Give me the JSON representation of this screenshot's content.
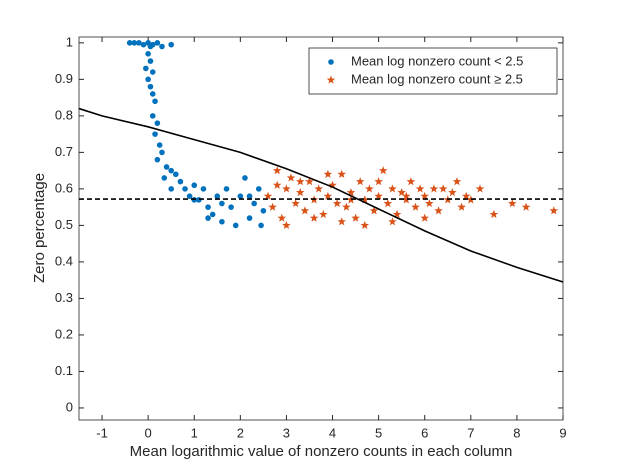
{
  "chart_data": {
    "type": "scatter",
    "xlabel": "Mean logarithmic value of nonzero counts in each column",
    "ylabel": "Zero percentage",
    "xlim": [
      -1.5,
      9
    ],
    "ylim": [
      -0.033,
      1.016
    ],
    "xticks": [
      -1,
      0,
      1,
      2,
      3,
      4,
      5,
      6,
      7,
      8,
      9
    ],
    "yticks": [
      0,
      0.1,
      0.2,
      0.3,
      0.4,
      0.5,
      0.6,
      0.7,
      0.8,
      0.9,
      1
    ],
    "legend": "upper right",
    "series": [
      {
        "name": "Mean log nonzero count < 2.5",
        "color": "#0072BD",
        "marker": "dot",
        "x": [
          -0.4,
          -0.3,
          -0.2,
          -0.1,
          0,
          0.05,
          0.1,
          0.2,
          0.3,
          0.5,
          0,
          0.05,
          -0.05,
          0.1,
          0,
          0.05,
          0.1,
          0.15,
          0.1,
          0.2,
          0.15,
          0.25,
          0.3,
          0.2,
          0.4,
          0.5,
          0.35,
          0.6,
          0.7,
          0.5,
          0.8,
          1.0,
          1.2,
          0.9,
          1.1,
          1.3,
          1.5,
          1.4,
          1.6,
          1.8,
          1.7,
          2.0,
          2.1,
          2.2,
          1.9,
          2.3,
          2.4,
          2.5,
          2.2,
          1.6,
          1.0,
          2.45,
          1.3
        ],
        "values": [
          1,
          1,
          1,
          0.995,
          1,
          0.99,
          0.995,
          1,
          0.99,
          0.995,
          0.97,
          0.95,
          0.93,
          0.92,
          0.9,
          0.88,
          0.86,
          0.84,
          0.8,
          0.78,
          0.75,
          0.72,
          0.7,
          0.68,
          0.66,
          0.65,
          0.63,
          0.64,
          0.62,
          0.6,
          0.6,
          0.61,
          0.6,
          0.58,
          0.57,
          0.55,
          0.58,
          0.53,
          0.51,
          0.55,
          0.6,
          0.58,
          0.63,
          0.52,
          0.5,
          0.56,
          0.6,
          0.54,
          0.58,
          0.56,
          0.57,
          0.5,
          0.52
        ]
      },
      {
        "name": "Mean log nonzero count ≥ 2.5",
        "color": "#D95319",
        "marker": "star",
        "x": [
          2.6,
          2.7,
          2.8,
          2.9,
          3.0,
          3.1,
          3.2,
          3.3,
          3.4,
          3.5,
          3.6,
          3.7,
          3.8,
          3.9,
          4.0,
          4.1,
          4.2,
          4.3,
          4.4,
          4.5,
          4.6,
          4.7,
          4.8,
          4.9,
          5.0,
          5.1,
          5.2,
          5.3,
          5.4,
          5.5,
          5.6,
          5.7,
          5.8,
          5.9,
          6.0,
          6.1,
          6.2,
          6.3,
          6.5,
          6.6,
          6.7,
          6.8,
          7.0,
          7.2,
          7.5,
          7.9,
          8.2,
          8.8,
          2.8,
          3.0,
          3.3,
          3.6,
          3.9,
          4.2,
          4.4,
          4.7,
          5.0,
          5.3,
          5.6,
          6.0,
          6.4,
          6.9
        ],
        "values": [
          0.58,
          0.55,
          0.61,
          0.52,
          0.6,
          0.63,
          0.56,
          0.59,
          0.54,
          0.62,
          0.57,
          0.6,
          0.53,
          0.58,
          0.61,
          0.56,
          0.64,
          0.55,
          0.59,
          0.52,
          0.62,
          0.57,
          0.6,
          0.54,
          0.58,
          0.65,
          0.56,
          0.6,
          0.53,
          0.59,
          0.57,
          0.62,
          0.55,
          0.6,
          0.58,
          0.56,
          0.6,
          0.54,
          0.57,
          0.59,
          0.62,
          0.55,
          0.57,
          0.6,
          0.53,
          0.56,
          0.55,
          0.54,
          0.65,
          0.5,
          0.62,
          0.52,
          0.64,
          0.51,
          0.57,
          0.5,
          0.62,
          0.51,
          0.58,
          0.52,
          0.6,
          0.58
        ]
      },
      {
        "type": "line",
        "style": "solid",
        "color": "#000000",
        "x": [
          -1.5,
          -1,
          0,
          1,
          2,
          3,
          4,
          5,
          6,
          7,
          8,
          9
        ],
        "values": [
          0.82,
          0.8,
          0.77,
          0.735,
          0.7,
          0.655,
          0.605,
          0.545,
          0.485,
          0.43,
          0.385,
          0.345
        ]
      },
      {
        "type": "line",
        "style": "dashed",
        "color": "#000000",
        "x": [
          -1.5,
          9
        ],
        "values": [
          0.572,
          0.572
        ]
      }
    ]
  }
}
